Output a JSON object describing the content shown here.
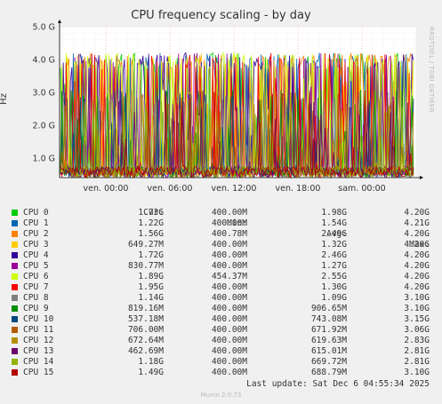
{
  "chart_data": {
    "type": "line",
    "title": "CPU frequency scaling - by day",
    "ylabel": "Hz",
    "ylim": [
      0.4,
      5.0
    ],
    "yticks": [
      "1.0 G",
      "2.0 G",
      "3.0 G",
      "4.0 G",
      "5.0 G"
    ],
    "ytick_values": [
      1.0,
      2.0,
      3.0,
      4.0,
      5.0
    ],
    "xticks": [
      "ven. 00:00",
      "ven. 06:00",
      "ven. 12:00",
      "ven. 18:00",
      "sam. 00:00"
    ],
    "grid": true,
    "legend_columns": [
      "Cur:",
      "Min:",
      "Avg:",
      "Max:"
    ],
    "series": [
      {
        "name": "CPU 0",
        "color": "#00cc00",
        "cur": "1.73G",
        "min": "400.00M",
        "avg": "1.98G",
        "max": "4.20G",
        "avg_ghz": 1.98,
        "max_ghz": 4.2
      },
      {
        "name": "CPU 1",
        "color": "#0066b3",
        "cur": "1.22G",
        "min": "400.00M",
        "avg": "1.54G",
        "max": "4.21G",
        "avg_ghz": 1.54,
        "max_ghz": 4.21
      },
      {
        "name": "CPU 2",
        "color": "#ff8000",
        "cur": "1.56G",
        "min": "400.78M",
        "avg": "2.49G",
        "max": "4.20G",
        "avg_ghz": 2.49,
        "max_ghz": 4.2
      },
      {
        "name": "CPU 3",
        "color": "#ffcc00",
        "cur": "649.27M",
        "min": "400.00M",
        "avg": "1.32G",
        "max": "4.20G",
        "avg_ghz": 1.32,
        "max_ghz": 4.2
      },
      {
        "name": "CPU 4",
        "color": "#330099",
        "cur": "1.72G",
        "min": "400.00M",
        "avg": "2.46G",
        "max": "4.20G",
        "avg_ghz": 2.46,
        "max_ghz": 4.2
      },
      {
        "name": "CPU 5",
        "color": "#990099",
        "cur": "830.77M",
        "min": "400.00M",
        "avg": "1.27G",
        "max": "4.20G",
        "avg_ghz": 1.27,
        "max_ghz": 4.2
      },
      {
        "name": "CPU 6",
        "color": "#ccff00",
        "cur": "1.89G",
        "min": "454.37M",
        "avg": "2.55G",
        "max": "4.20G",
        "avg_ghz": 2.55,
        "max_ghz": 4.2
      },
      {
        "name": "CPU 7",
        "color": "#ff0000",
        "cur": "1.95G",
        "min": "400.00M",
        "avg": "1.30G",
        "max": "4.20G",
        "avg_ghz": 1.3,
        "max_ghz": 4.2
      },
      {
        "name": "CPU 8",
        "color": "#808080",
        "cur": "1.14G",
        "min": "400.00M",
        "avg": "1.09G",
        "max": "3.10G",
        "avg_ghz": 1.09,
        "max_ghz": 3.1
      },
      {
        "name": "CPU 9",
        "color": "#008f00",
        "cur": "819.16M",
        "min": "400.00M",
        "avg": "906.65M",
        "max": "3.10G",
        "avg_ghz": 0.907,
        "max_ghz": 3.1
      },
      {
        "name": "CPU 10",
        "color": "#00487d",
        "cur": "537.18M",
        "min": "400.00M",
        "avg": "743.08M",
        "max": "3.15G",
        "avg_ghz": 0.743,
        "max_ghz": 3.15
      },
      {
        "name": "CPU 11",
        "color": "#b35a00",
        "cur": "706.00M",
        "min": "400.00M",
        "avg": "671.92M",
        "max": "3.06G",
        "avg_ghz": 0.672,
        "max_ghz": 3.06
      },
      {
        "name": "CPU 12",
        "color": "#b38f00",
        "cur": "672.64M",
        "min": "400.00M",
        "avg": "619.63M",
        "max": "2.83G",
        "avg_ghz": 0.62,
        "max_ghz": 2.83
      },
      {
        "name": "CPU 13",
        "color": "#6b006b",
        "cur": "462.69M",
        "min": "400.00M",
        "avg": "615.01M",
        "max": "2.81G",
        "avg_ghz": 0.615,
        "max_ghz": 2.81
      },
      {
        "name": "CPU 14",
        "color": "#8fb300",
        "cur": "1.18G",
        "min": "400.00M",
        "avg": "669.72M",
        "max": "2.81G",
        "avg_ghz": 0.67,
        "max_ghz": 2.81
      },
      {
        "name": "CPU 15",
        "color": "#b30000",
        "cur": "1.49G",
        "min": "400.00M",
        "avg": "688.79M",
        "max": "3.10G",
        "avg_ghz": 0.689,
        "max_ghz": 3.1
      }
    ]
  },
  "side_label": "RRDTOOL / TOBI OETIKER",
  "last_update": "Last update: Sat Dec  6 04:55:34 2025",
  "footer": "Munin 2.0.73"
}
